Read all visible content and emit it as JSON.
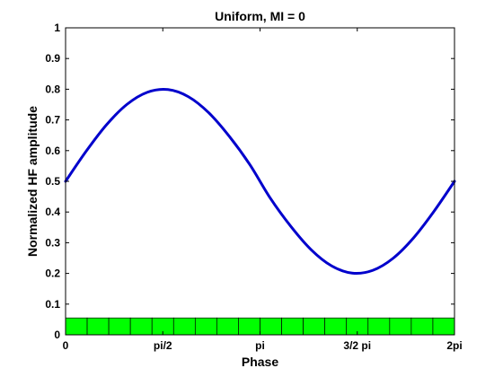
{
  "chart_data": {
    "type": "line",
    "title": "Uniform, MI = 0",
    "xlabel": "Phase",
    "ylabel": "Normalized HF amplitude",
    "xlim": [
      0,
      6.283185307
    ],
    "ylim": [
      0,
      1
    ],
    "x_ticks": [
      {
        "value": 0,
        "label": "0"
      },
      {
        "value": 1.570796327,
        "label": "pi/2"
      },
      {
        "value": 3.141592654,
        "label": "pi"
      },
      {
        "value": 4.71238898,
        "label": "3/2 pi"
      },
      {
        "value": 6.283185307,
        "label": "2pi"
      }
    ],
    "y_ticks": [
      {
        "value": 0,
        "label": "0"
      },
      {
        "value": 0.1,
        "label": "0.1"
      },
      {
        "value": 0.2,
        "label": "0.2"
      },
      {
        "value": 0.3,
        "label": "0.3"
      },
      {
        "value": 0.4,
        "label": "0.4"
      },
      {
        "value": 0.5,
        "label": "0.5"
      },
      {
        "value": 0.6,
        "label": "0.6"
      },
      {
        "value": 0.7,
        "label": "0.7"
      },
      {
        "value": 0.8,
        "label": "0.8"
      },
      {
        "value": 0.9,
        "label": "0.9"
      },
      {
        "value": 1,
        "label": "1"
      }
    ],
    "grid": false,
    "series": [
      {
        "type": "line",
        "color": "#0000cc",
        "x": [
          0,
          0.3307,
          0.6614,
          0.9921,
          1.3228,
          1.6535,
          1.9842,
          2.3149,
          2.6456,
          2.9762,
          3.3069,
          3.6376,
          3.9683,
          4.299,
          4.6297,
          4.9604,
          5.2911,
          5.6218,
          5.9525,
          6.2832
        ],
        "y": [
          0.5,
          0.5975,
          0.6842,
          0.7507,
          0.7902,
          0.7989,
          0.7756,
          0.723,
          0.6464,
          0.5546,
          0.4453,
          0.3536,
          0.277,
          0.2244,
          0.2011,
          0.2098,
          0.2493,
          0.3158,
          0.4025,
          0.5
        ]
      },
      {
        "type": "bar",
        "color": "#00ff00",
        "x": [
          0.1745,
          0.5236,
          0.8727,
          1.2217,
          1.5708,
          1.9199,
          2.2689,
          2.618,
          2.9671,
          3.3161,
          3.6652,
          4.0143,
          4.3633,
          4.7124,
          5.0615,
          5.4105,
          5.7596,
          6.1087
        ],
        "y": [
          0.055,
          0.055,
          0.055,
          0.055,
          0.055,
          0.055,
          0.055,
          0.055,
          0.055,
          0.055,
          0.055,
          0.055,
          0.055,
          0.055,
          0.055,
          0.055,
          0.055,
          0.055
        ],
        "bin_width": 0.3491
      }
    ]
  }
}
